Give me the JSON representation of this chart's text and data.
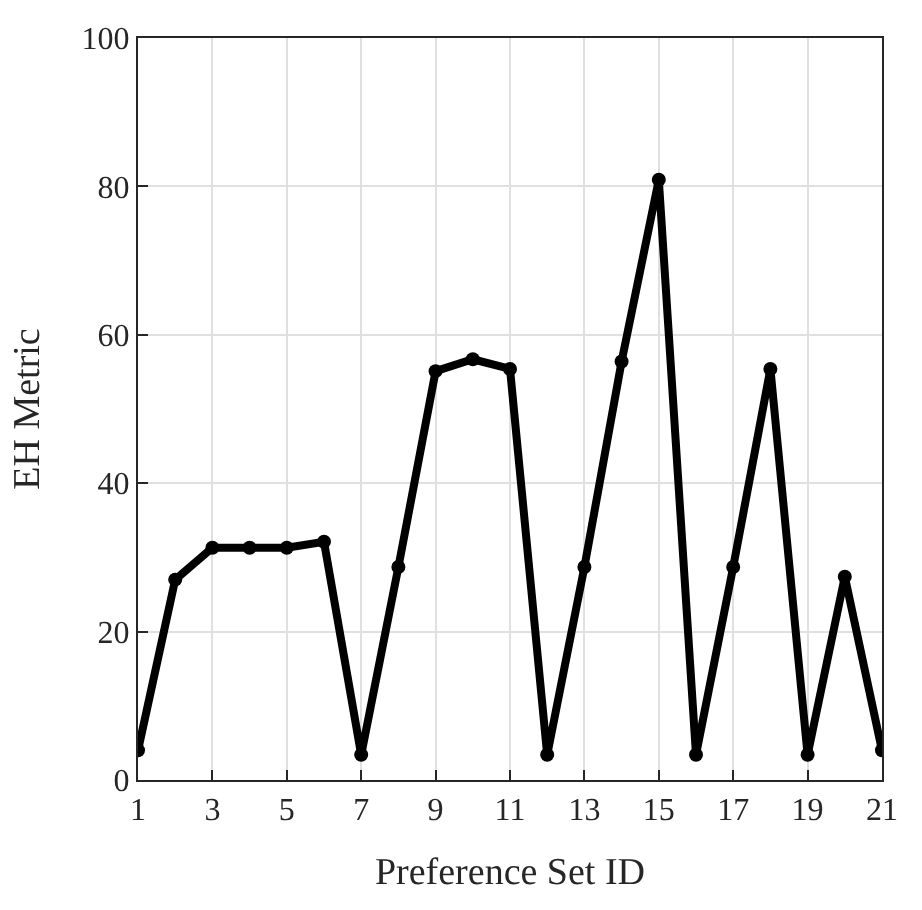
{
  "chart_data": {
    "type": "line",
    "xlabel": "Preference Set ID",
    "ylabel": "EH Metric",
    "x": [
      1,
      2,
      3,
      4,
      5,
      6,
      7,
      8,
      9,
      10,
      11,
      12,
      13,
      14,
      15,
      16,
      17,
      18,
      19,
      20,
      21
    ],
    "series": [
      {
        "color": "#000000",
        "values": [
          4,
          27,
          31.3,
          31.3,
          31.3,
          32.1,
          3.4,
          28.7,
          55.1,
          56.7,
          55.4,
          3.4,
          28.7,
          56.4,
          80.9,
          3.4,
          28.7,
          55.4,
          3.4,
          27.4,
          4
        ]
      }
    ],
    "xlim": [
      1,
      21
    ],
    "xticks": [
      1,
      3,
      5,
      7,
      9,
      11,
      13,
      15,
      17,
      19,
      21
    ],
    "ylim": [
      0,
      100
    ],
    "yticks": [
      0,
      20,
      40,
      60,
      80,
      100
    ],
    "grid": true,
    "marker": "circle",
    "line_style": "solid"
  }
}
